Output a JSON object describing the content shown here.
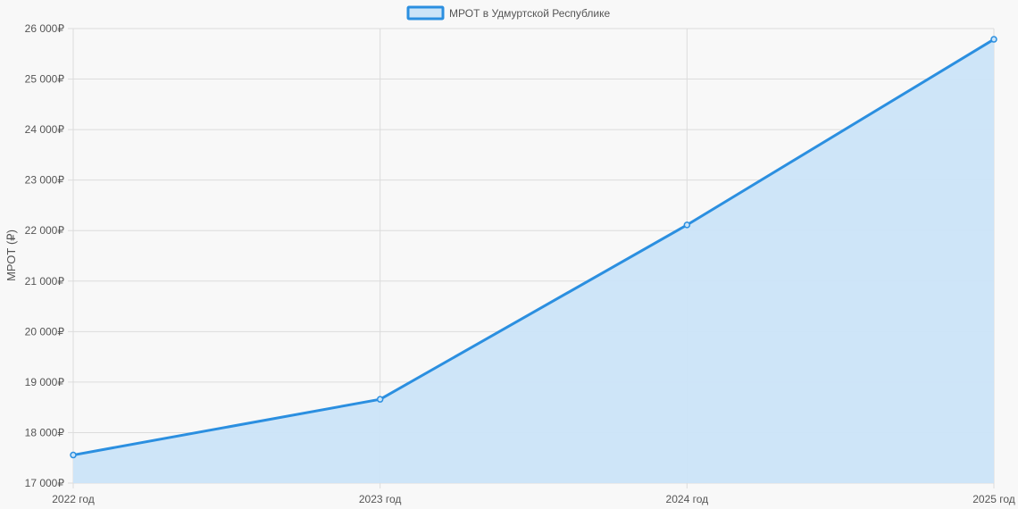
{
  "chart_data": {
    "type": "area",
    "categories": [
      "2022 год",
      "2023 год",
      "2024 год",
      "2025 год"
    ],
    "series": [
      {
        "name": "МРОТ в Удмуртской Республике",
        "values": [
          17556,
          18659,
          22112,
          25787
        ]
      }
    ],
    "ylabel": "МРОТ (₽)",
    "ylim": [
      17000,
      26000
    ],
    "yticks": [
      "17 000₽",
      "18 000₽",
      "19 000₽",
      "20 000₽",
      "21 000₽",
      "22 000₽",
      "23 000₽",
      "24 000₽",
      "25 000₽",
      "26 000₽"
    ],
    "ytick_values": [
      17000,
      18000,
      19000,
      20000,
      21000,
      22000,
      23000,
      24000,
      25000,
      26000
    ],
    "grid": true,
    "legend": "top-center",
    "colors": {
      "line": "#2b8fe0",
      "fill": "#cbe4f8",
      "grid": "#dcdcdc",
      "background": "#f8f8f8"
    }
  }
}
